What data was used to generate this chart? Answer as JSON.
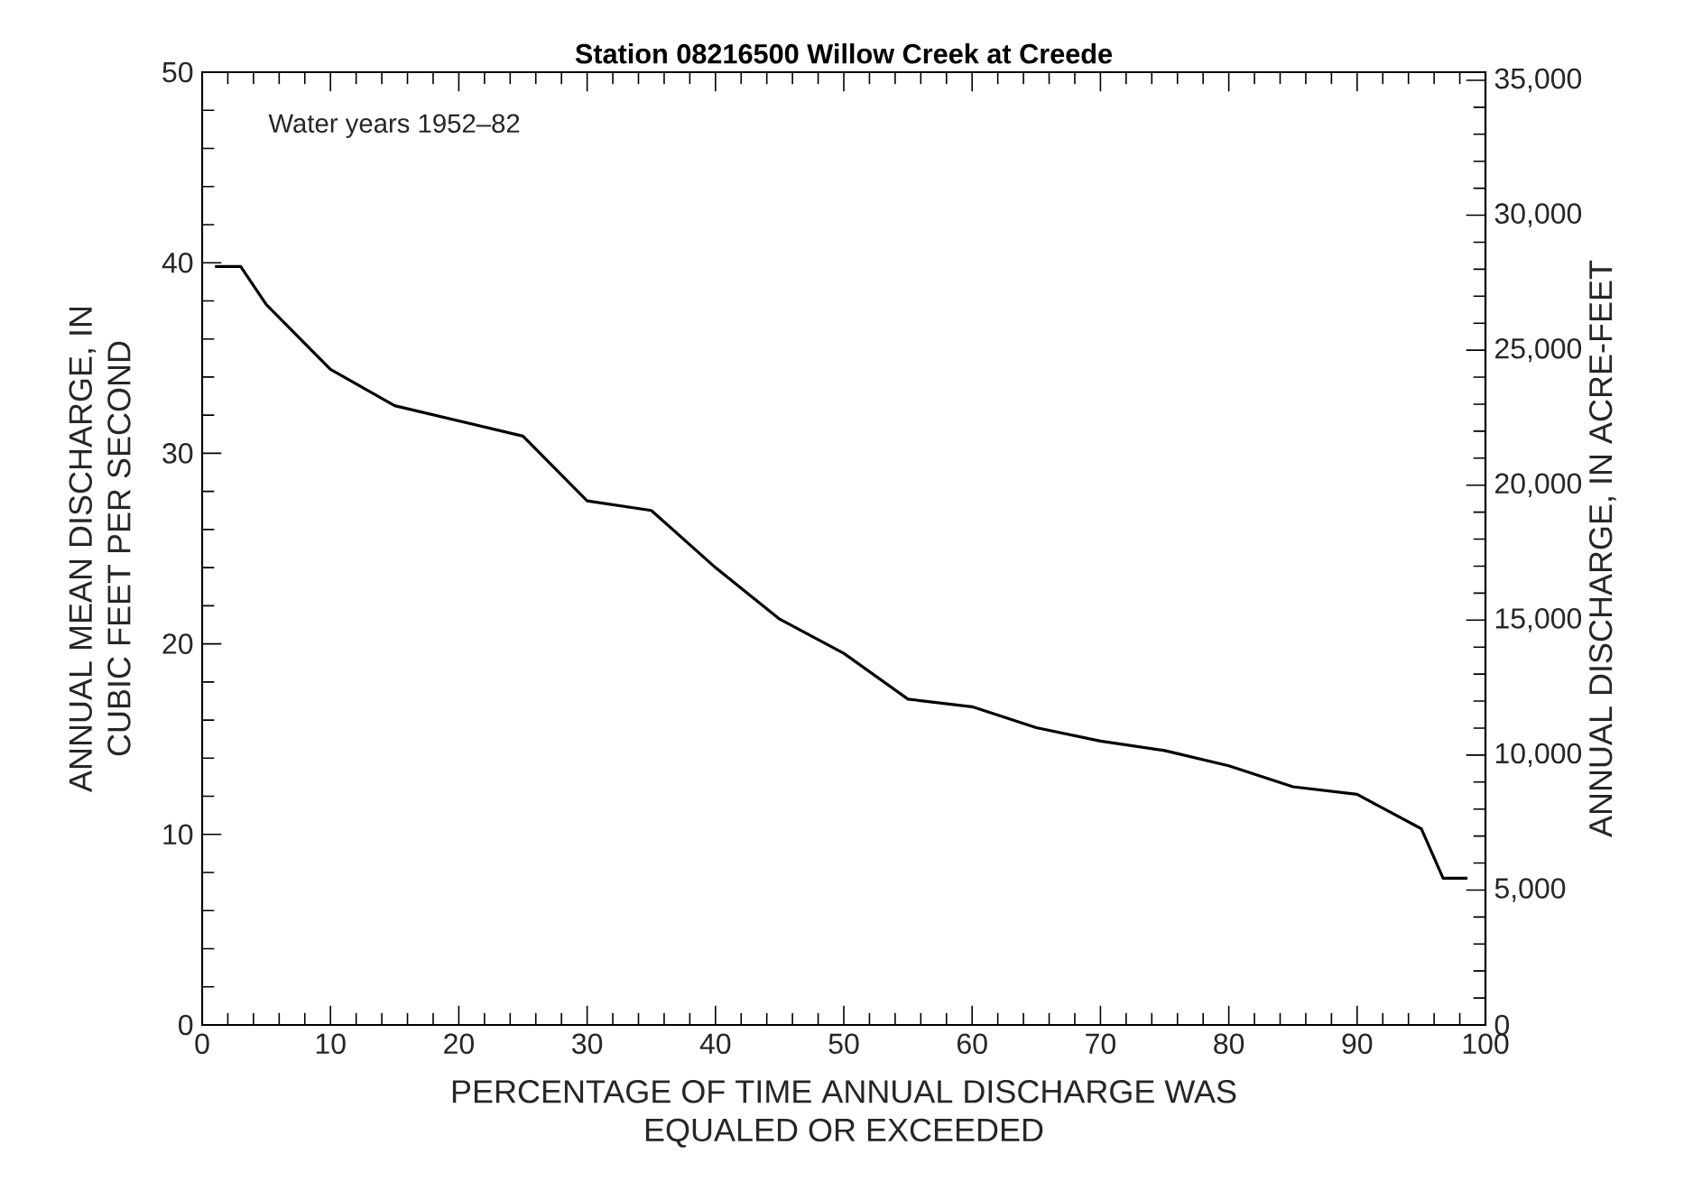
{
  "chart_data": {
    "type": "line",
    "title": "Station 08216500 Willow Creek at Creede",
    "xlabel": "PERCENTAGE OF TIME ANNUAL DISCHARGE WAS EQUALED OR EXCEEDED",
    "ylabel": "ANNUAL MEAN DISCHARGE, IN CUBIC FEET PER SECOND",
    "y2label": "ANNUAL DISCHARGE, IN ACRE-FEET",
    "annotations": [
      "Water years 1952–82"
    ],
    "x": [
      1,
      3,
      5,
      10,
      15,
      25,
      30,
      35,
      40,
      45,
      50,
      55,
      60,
      65,
      70,
      75,
      80,
      85,
      90,
      95,
      96.7,
      98.6
    ],
    "series": [
      {
        "color": "#000000",
        "values": [
          39.8,
          39.8,
          37.8,
          34.4,
          32.5,
          30.9,
          27.5,
          27.0,
          24.0,
          21.3,
          19.5,
          17.1,
          16.7,
          15.6,
          14.9,
          14.4,
          13.6,
          12.5,
          12.1,
          10.3,
          7.7,
          7.7
        ]
      }
    ],
    "xlim": [
      0,
      100
    ],
    "xticks": [
      0,
      10,
      20,
      30,
      40,
      50,
      60,
      70,
      80,
      90,
      100
    ],
    "ylim": [
      0,
      50
    ],
    "yticks": [
      0,
      10,
      20,
      30,
      40,
      50
    ],
    "y2lim": [
      0,
      35300
    ],
    "y2ticks": [
      0,
      {
        "value": 5000,
        "label": "5,000"
      },
      {
        "value": 10000,
        "label": "10,000"
      },
      {
        "value": 15000,
        "label": "15,000"
      },
      {
        "value": 20000,
        "label": "20,000"
      },
      {
        "value": 25000,
        "label": "25,000"
      },
      {
        "value": 30000,
        "label": "30,000"
      },
      {
        "value": 35000,
        "label": "35,000"
      }
    ]
  }
}
